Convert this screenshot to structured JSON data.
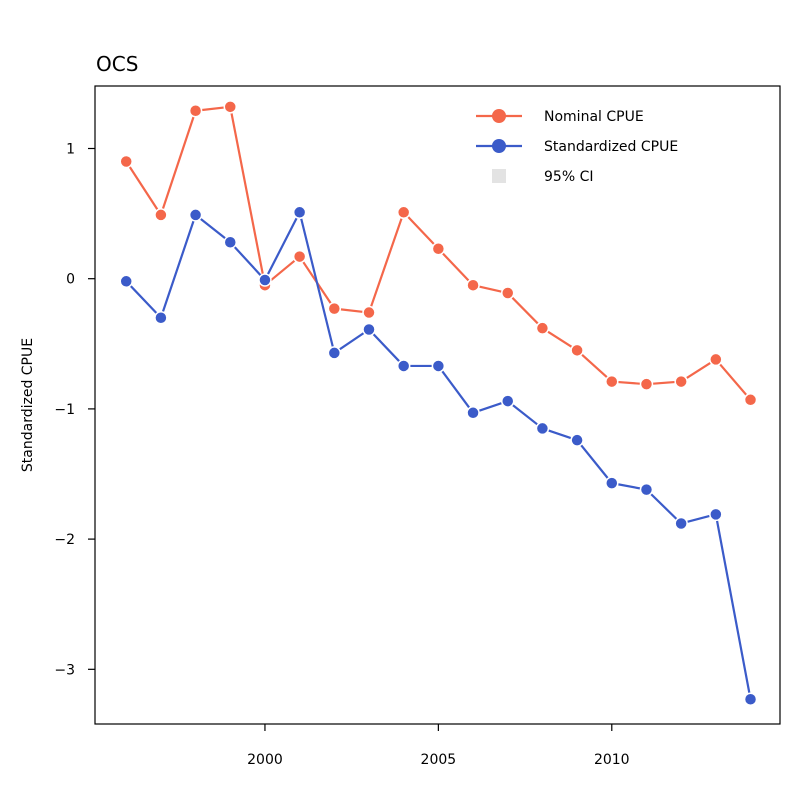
{
  "chart_data": {
    "type": "line",
    "title": "OCS",
    "xlabel": "",
    "ylabel": "Standardized CPUE",
    "xlim": [
      1995.1,
      2014.85
    ],
    "ylim": [
      -3.42,
      1.48
    ],
    "xticks": [
      2000,
      2005,
      2010
    ],
    "yticks": [
      -3,
      -2,
      -1,
      0,
      1
    ],
    "ytick_labels": [
      "−3",
      "−2",
      "−1",
      "0",
      "1"
    ],
    "x": [
      1996,
      1997,
      1998,
      1999,
      2000,
      2001,
      2002,
      2003,
      2004,
      2005,
      2006,
      2007,
      2008,
      2009,
      2010,
      2011,
      2012,
      2013,
      2014
    ],
    "series": [
      {
        "name": "Nominal CPUE",
        "color": "#F4674A",
        "values": [
          0.9,
          0.49,
          1.29,
          1.32,
          -0.05,
          0.17,
          -0.23,
          -0.26,
          0.51,
          0.23,
          -0.05,
          -0.11,
          -0.38,
          -0.55,
          -0.79,
          -0.81,
          -0.79,
          -0.62,
          -0.93
        ]
      },
      {
        "name": "Standardized CPUE",
        "color": "#3B5BC9",
        "values": [
          -0.02,
          -0.3,
          0.49,
          0.28,
          -0.01,
          0.51,
          -0.57,
          -0.39,
          -0.67,
          -0.67,
          -1.03,
          -0.94,
          -1.15,
          -1.24,
          -1.57,
          -1.62,
          -1.88,
          -1.81,
          -3.23
        ]
      }
    ],
    "legend": {
      "position": "top-right",
      "ci_label": "95% CI",
      "ci_color": "#E3E3E3"
    },
    "grid": false
  }
}
